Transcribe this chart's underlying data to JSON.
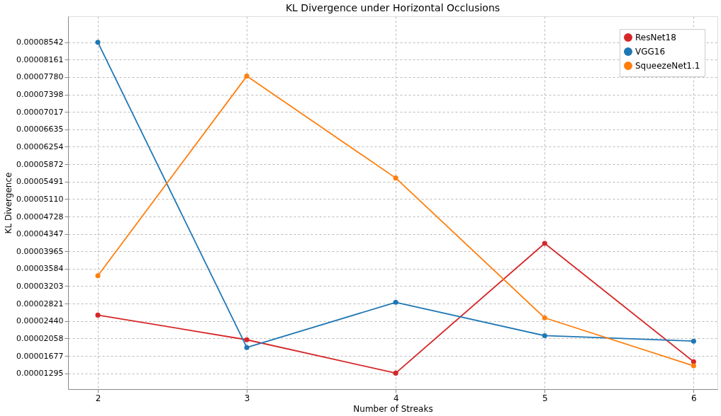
{
  "chart_data": {
    "type": "line",
    "title": "KL Divergence under Horizontal Occlusions",
    "xlabel": "Number of Streaks",
    "ylabel": "KL Divergence",
    "x": [
      2,
      3,
      4,
      5,
      6
    ],
    "series": [
      {
        "name": "ResNet18",
        "color": "#d62728",
        "values": [
          2.57e-05,
          2.03e-05,
          1.3e-05,
          4.14e-05,
          1.55e-05
        ]
      },
      {
        "name": "VGG16",
        "color": "#1f77b4",
        "values": [
          8.54e-05,
          1.86e-05,
          2.85e-05,
          2.12e-05,
          2e-05
        ]
      },
      {
        "name": "SqueezeNet1.1",
        "color": "#ff7f0e",
        "values": [
          3.43e-05,
          7.8e-05,
          5.57e-05,
          2.51e-05,
          1.46e-05
        ]
      }
    ],
    "xlim": [
      1.8,
      6.16
    ],
    "xticks": [
      2,
      3,
      4,
      5,
      6
    ],
    "ylim": [
      9.5e-06,
      9.11e-05
    ],
    "yticks": [
      {
        "value": 1.295e-05,
        "label": "0.00001295"
      },
      {
        "value": 1.677e-05,
        "label": "0.00001677"
      },
      {
        "value": 2.058e-05,
        "label": "0.00002058"
      },
      {
        "value": 2.44e-05,
        "label": "0.00002440"
      },
      {
        "value": 2.821e-05,
        "label": "0.00002821"
      },
      {
        "value": 3.203e-05,
        "label": "0.00003203"
      },
      {
        "value": 3.584e-05,
        "label": "0.00003584"
      },
      {
        "value": 3.965e-05,
        "label": "0.00003965"
      },
      {
        "value": 4.347e-05,
        "label": "0.00004347"
      },
      {
        "value": 4.728e-05,
        "label": "0.00004728"
      },
      {
        "value": 5.11e-05,
        "label": "0.00005110"
      },
      {
        "value": 5.491e-05,
        "label": "0.00005491"
      },
      {
        "value": 5.872e-05,
        "label": "0.00005872"
      },
      {
        "value": 6.254e-05,
        "label": "0.00006254"
      },
      {
        "value": 6.635e-05,
        "label": "0.00006635"
      },
      {
        "value": 7.017e-05,
        "label": "0.00007017"
      },
      {
        "value": 7.398e-05,
        "label": "0.00007398"
      },
      {
        "value": 7.78e-05,
        "label": "0.00007780"
      },
      {
        "value": 8.161e-05,
        "label": "0.00008161"
      },
      {
        "value": 8.542e-05,
        "label": "0.00008542"
      }
    ],
    "grid": true,
    "legend": "top right",
    "marker": "circle",
    "line_style": "solid"
  }
}
